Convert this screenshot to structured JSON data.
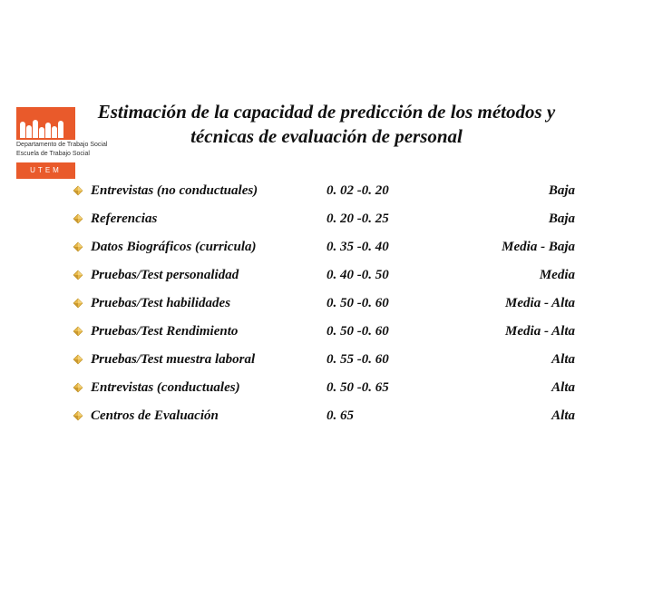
{
  "logo": {
    "line1": "Departamento de Trabajo Social",
    "line2": "Escuela de Trabajo Social",
    "badge": "UTEM",
    "bgColor": "#e95a2b"
  },
  "title": "Estimación de la capacidad de predicción de los métodos y técnicas de evaluación de personal",
  "bullet": {
    "fill": "#e9b94a",
    "stroke": "#b88a1a"
  },
  "rows": [
    {
      "method": "Entrevistas (no conductuales)",
      "range": "0. 02 -0. 20",
      "level": "Baja"
    },
    {
      "method": "Referencias",
      "range": "0. 20 -0. 25",
      "level": "Baja"
    },
    {
      "method": "Datos Biográficos (curricula)",
      "range": "0. 35 -0. 40",
      "level": "Media - Baja"
    },
    {
      "method": "Pruebas/Test personalidad",
      "range": "0. 40 -0. 50",
      "level": "Media"
    },
    {
      "method": "Pruebas/Test habilidades",
      "range": "0. 50 -0. 60",
      "level": "Media - Alta"
    },
    {
      "method": "Pruebas/Test Rendimiento",
      "range": "0. 50 -0. 60",
      "level": "Media - Alta"
    },
    {
      "method": "Pruebas/Test muestra laboral",
      "range": "0. 55 -0. 60",
      "level": "Alta"
    },
    {
      "method": "Entrevistas (conductuales)",
      "range": "0. 50 -0. 65",
      "level": "Alta"
    },
    {
      "method": "Centros de Evaluación",
      "range": "0. 65",
      "level": "Alta"
    }
  ]
}
